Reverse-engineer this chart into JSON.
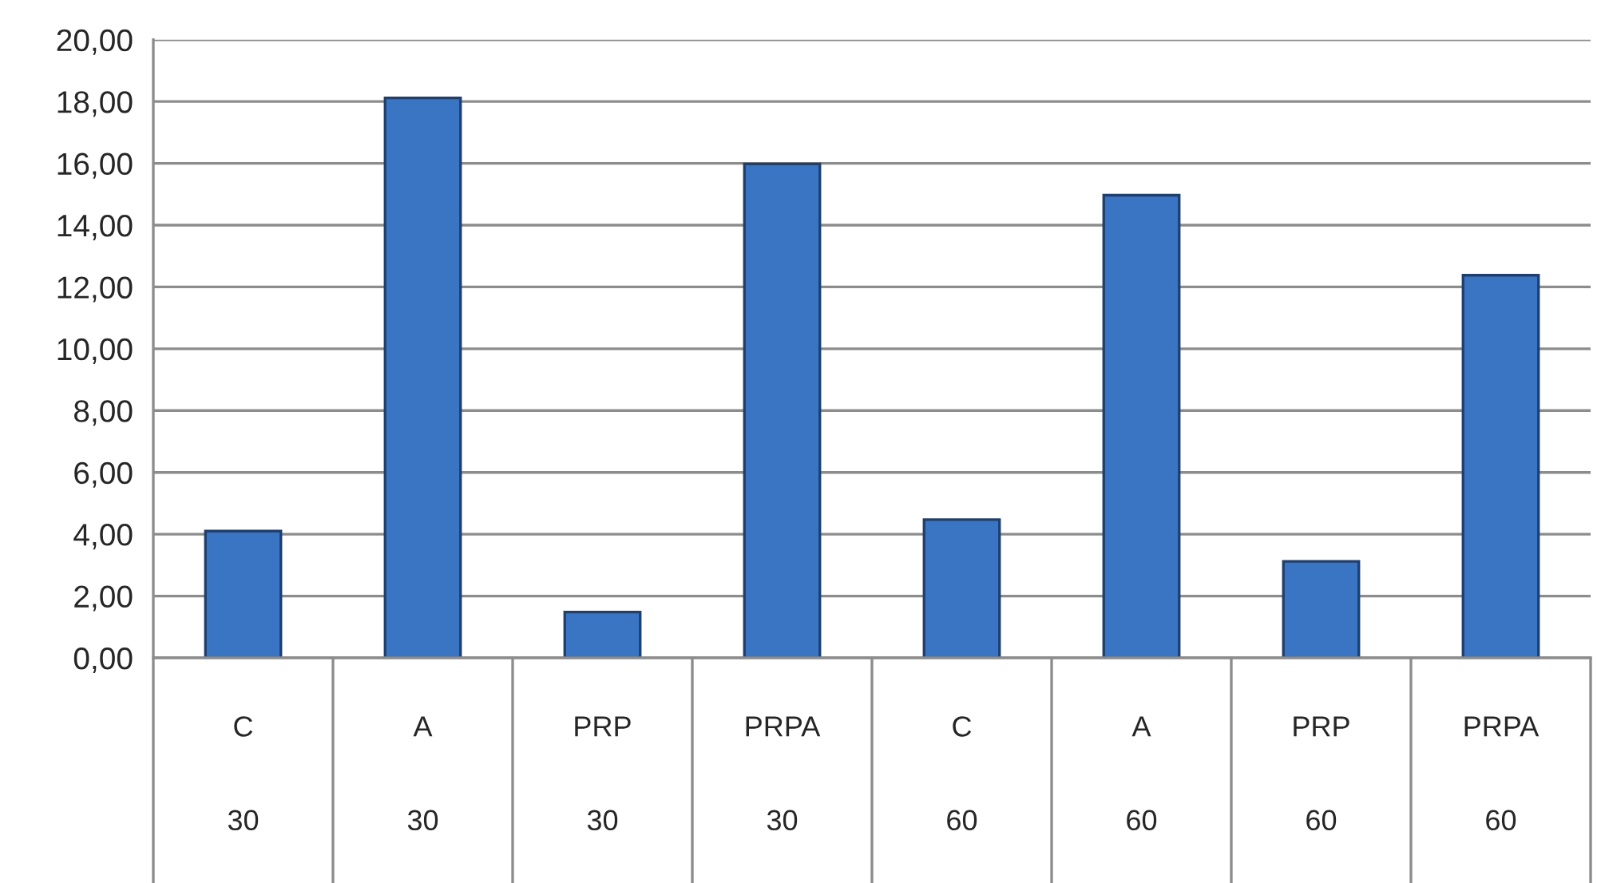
{
  "chart_data": {
    "type": "bar",
    "categories": [
      "C\n30",
      "A\n30",
      "PRP\n30",
      "PRPA\n30",
      "C\n60",
      "A\n60",
      "PRP\n60",
      "PRPA\n60"
    ],
    "values": [
      4.1,
      18.12,
      1.48,
      15.98,
      4.47,
      14.97,
      3.12,
      12.38
    ],
    "color": "#3a75c4",
    "ylim": [
      0,
      20
    ],
    "yticks": [
      {
        "value": 0,
        "label": "0,00"
      },
      {
        "value": 2,
        "label": "2,00"
      },
      {
        "value": 4,
        "label": "4,00"
      },
      {
        "value": 6,
        "label": "6,00"
      },
      {
        "value": 8,
        "label": "8,00"
      },
      {
        "value": 10,
        "label": "10,00"
      },
      {
        "value": 12,
        "label": "12,00"
      },
      {
        "value": 14,
        "label": "14,00"
      },
      {
        "value": 16,
        "label": "16,00"
      },
      {
        "value": 18,
        "label": "18,00"
      },
      {
        "value": 20,
        "label": "20,00"
      }
    ],
    "grid": "y",
    "legend": false
  }
}
